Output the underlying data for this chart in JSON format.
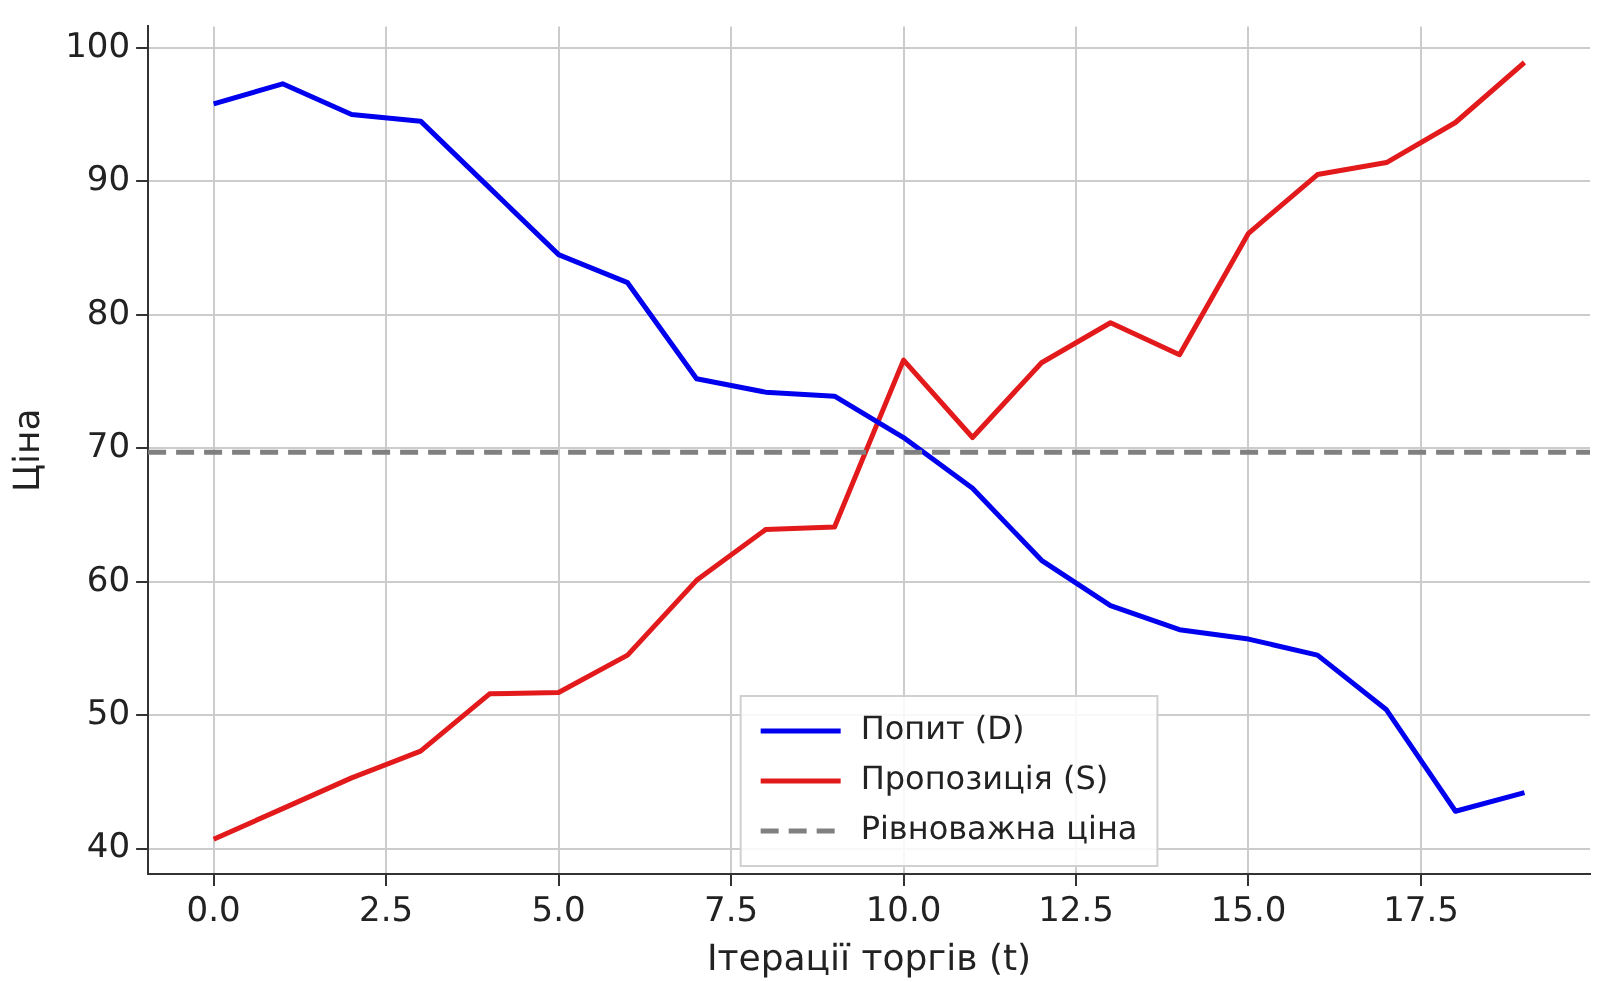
{
  "chart_data": {
    "type": "line",
    "xlabel": "Ітерації торгів (t)",
    "ylabel": "Ціна",
    "x": [
      0,
      1,
      2,
      3,
      4,
      5,
      6,
      7,
      8,
      9,
      10,
      11,
      12,
      13,
      14,
      15,
      16,
      17,
      18,
      19
    ],
    "series": [
      {
        "name": "Попит (D)",
        "color": "#0000ee",
        "values": [
          95.8,
          97.3,
          95,
          94.5,
          89.5,
          84.5,
          82.4,
          75.2,
          74.2,
          73.9,
          70.8,
          67,
          61.6,
          58.2,
          56.4,
          55.7,
          54.5,
          50.4,
          42.8,
          44.2
        ]
      },
      {
        "name": "Пропозиція (S)",
        "color": "#e31a1c",
        "values": [
          40.7,
          43,
          45.3,
          47.3,
          51.6,
          51.7,
          54.5,
          60.1,
          63.9,
          64.1,
          76.6,
          70.8,
          76.4,
          79.4,
          77,
          86.1,
          90.5,
          91.4,
          94.4,
          98.9
        ]
      }
    ],
    "ref_lines": [
      {
        "axis": "y",
        "value": 69.7,
        "label": "Рівноважна ціна",
        "color": "#808080",
        "line_style": "dashed"
      }
    ],
    "xlim": [
      -0.95,
      19.95
    ],
    "xticks": [
      {
        "value": 0,
        "label": "0.0"
      },
      {
        "value": 2.5,
        "label": "2.5"
      },
      {
        "value": 5,
        "label": "5.0"
      },
      {
        "value": 7.5,
        "label": "7.5"
      },
      {
        "value": 10,
        "label": "10.0"
      },
      {
        "value": 12.5,
        "label": "12.5"
      },
      {
        "value": 15,
        "label": "15.0"
      },
      {
        "value": 17.5,
        "label": "17.5"
      }
    ],
    "ylim": [
      38.1,
      101.6
    ],
    "yticks": [
      40,
      50,
      60,
      70,
      80,
      90,
      100
    ],
    "grid": true,
    "legend": "bottom",
    "marker": "none",
    "line_style": "solid"
  }
}
